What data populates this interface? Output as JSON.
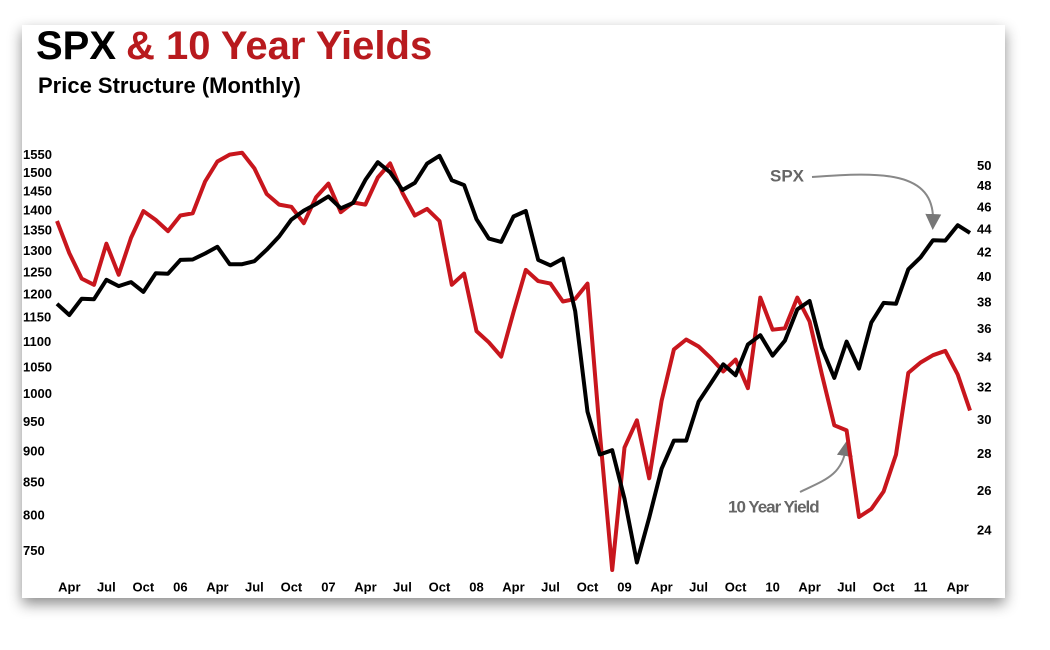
{
  "chart_data": {
    "type": "line",
    "title": [
      "SPX",
      "& 10 Year Yields"
    ],
    "subtitle": "Price Structure (Monthly)",
    "annotations": [
      "SPX",
      "10 Year Yield"
    ],
    "yscale": "log",
    "y2scale": "log",
    "grid": false,
    "categories": [
      null,
      "Apr",
      null,
      null,
      "Jul",
      null,
      null,
      "Oct",
      null,
      null,
      "06",
      null,
      null,
      "Apr",
      null,
      null,
      "Jul",
      null,
      null,
      "Oct",
      null,
      null,
      "07",
      null,
      null,
      "Apr",
      null,
      null,
      "Jul",
      null,
      null,
      "Oct",
      null,
      null,
      "08",
      null,
      null,
      "Apr",
      null,
      null,
      "Jul",
      null,
      null,
      "Oct",
      null,
      null,
      "09",
      null,
      null,
      "Apr",
      null,
      null,
      "Jul",
      null,
      null,
      "Oct",
      null,
      null,
      "10",
      null,
      null,
      "Apr",
      null,
      null,
      "Jul",
      null,
      null,
      "Oct",
      null,
      null,
      "11",
      null,
      null,
      "Apr",
      null
    ],
    "series": [
      {
        "name": "SPX",
        "color": "#000000",
        "values": [
          1181,
          1157,
          1192,
          1191,
          1234,
          1220,
          1229,
          1207,
          1249,
          1248,
          1280,
          1281,
          1295,
          1311,
          1270,
          1270,
          1277,
          1304,
          1336,
          1378,
          1401,
          1418,
          1438,
          1407,
          1421,
          1482,
          1531,
          1503,
          1455,
          1474,
          1527,
          1549,
          1481,
          1468,
          1379,
          1331,
          1323,
          1386,
          1400,
          1280,
          1267,
          1283,
          1165,
          969,
          896,
          903,
          826,
          735,
          798,
          873,
          919,
          919,
          987,
          1021,
          1057,
          1036,
          1096,
          1115,
          1074,
          1104,
          1169,
          1187,
          1089,
          1031,
          1102,
          1049,
          1141,
          1183,
          1181,
          1258,
          1286,
          1327,
          1326,
          1364,
          1345
        ]
      },
      {
        "name": "10 Year Yield",
        "color": "#c8161d",
        "axis": "y2",
        "values": [
          44.8,
          42.0,
          39.9,
          39.4,
          42.8,
          40.2,
          43.3,
          45.7,
          44.9,
          43.9,
          45.3,
          45.5,
          48.5,
          50.5,
          51.2,
          51.4,
          49.8,
          47.3,
          46.3,
          46.1,
          44.6,
          47.0,
          48.3,
          45.6,
          46.5,
          46.3,
          48.9,
          50.3,
          47.4,
          45.3,
          45.9,
          44.8,
          39.4,
          40.3,
          35.9,
          35.1,
          34.1,
          37.3,
          40.6,
          39.7,
          39.5,
          38.1,
          38.3,
          39.5,
          29.2,
          22.2,
          28.4,
          30.0,
          26.7,
          31.2,
          34.6,
          35.3,
          34.8,
          34.0,
          33.1,
          33.9,
          32.0,
          38.4,
          36.0,
          36.1,
          38.4,
          36.6,
          32.9,
          29.7,
          29.4,
          24.7,
          25.1,
          26.0,
          28.0,
          33.0,
          33.7,
          34.2,
          34.5,
          32.9,
          30.6
        ]
      }
    ],
    "ylim": [
      725,
      1580
    ],
    "yticks": [
      750,
      800,
      850,
      900,
      950,
      1000,
      1050,
      1100,
      1150,
      1200,
      1250,
      1300,
      1350,
      1400,
      1450,
      1500,
      1550
    ],
    "y2lim": [
      22.2,
      52.2
    ],
    "y2ticks": [
      24,
      26,
      28,
      30,
      32,
      34,
      36,
      38,
      40,
      42,
      44,
      46,
      48,
      50
    ]
  }
}
